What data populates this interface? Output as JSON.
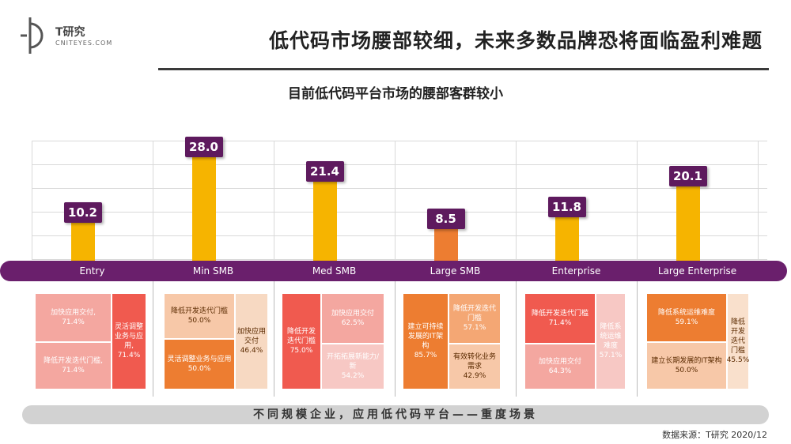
{
  "header": {
    "logo_title": "T研究",
    "logo_sub": "CNITEYES.COM",
    "main_title": "低代码市场腰部较细，未来多数品牌恐将面临盈利难题"
  },
  "chart_title": "目前低代码平台市场的腰部客群较小",
  "chart_data": {
    "type": "bar",
    "title": "目前低代码平台市场的腰部客群较小",
    "categories": [
      "Entry",
      "Min SMB",
      "Med SMB",
      "Large SMB",
      "Enterprise",
      "Large Enterprise"
    ],
    "values": [
      10.2,
      28.0,
      21.4,
      8.5,
      11.8,
      20.1
    ],
    "value_labels": [
      "10.2",
      "28.0",
      "21.4",
      "8.5",
      "11.8",
      "20.1"
    ],
    "ylim": [
      0,
      30
    ],
    "grid": true,
    "colors": [
      "#f6b400",
      "#f6b400",
      "#f6b400",
      "#ed7d31",
      "#f6b400",
      "#f6b400"
    ]
  },
  "scenarios": [
    {
      "segment": "Entry",
      "blocks": [
        {
          "text": "加快应用交付,\n71.4%",
          "color": "#f4a7a0"
        },
        {
          "text": "灵活调整业务与应用,\n71.4%",
          "color": "#f05a4f"
        },
        {
          "text": "降低开发迭代门槛,\n71.4%",
          "color": "#f4a7a0"
        }
      ]
    },
    {
      "segment": "Min SMB",
      "blocks": [
        {
          "text": "降低开发迭代门槛\n50.0%",
          "color": "#f7c8a8"
        },
        {
          "text": "灵活调整业务与应用\n50.0%",
          "color": "#ed7d31"
        },
        {
          "text": "加快应用交付\n46.4%",
          "color": "#f7d9c2"
        }
      ]
    },
    {
      "segment": "Med SMB",
      "blocks": [
        {
          "text": "降低开发迭代门槛\n75.0%",
          "color": "#f05a4f"
        },
        {
          "text": "加快应用交付\n62.5%",
          "color": "#f4a7a0"
        },
        {
          "text": "开拓拓展新能力/新\n54.2%",
          "color": "#f7c8c4"
        }
      ]
    },
    {
      "segment": "Large SMB",
      "blocks": [
        {
          "text": "建立可持续发展的IT架构\n85.7%",
          "color": "#ed7d31"
        },
        {
          "text": "降低开发迭代门槛\n57.1%",
          "color": "#f4a774"
        },
        {
          "text": "有效转化业务需求\n42.9%",
          "color": "#f7c8a8"
        }
      ]
    },
    {
      "segment": "Enterprise",
      "blocks": [
        {
          "text": "降低开发迭代门槛\n71.4%",
          "color": "#f05a4f"
        },
        {
          "text": "加快应用交付\n64.3%",
          "color": "#f4a7a0"
        },
        {
          "text": "降低系统运维难度\n57.1%",
          "color": "#f7c8c4"
        }
      ]
    },
    {
      "segment": "Large Enterprise",
      "blocks": [
        {
          "text": "降低系统运维难度\n59.1%",
          "color": "#ed7d31"
        },
        {
          "text": "建立长期发展的IT架构\n50.0%",
          "color": "#f7c8a8"
        },
        {
          "text": "降低开发迭代门槛\n45.5%",
          "color": "#f9e0cc"
        }
      ]
    }
  ],
  "bottom_caption": "不同规模企业，应用低代码平台——重度场景",
  "source": "数据来源：T研究 2020/12"
}
